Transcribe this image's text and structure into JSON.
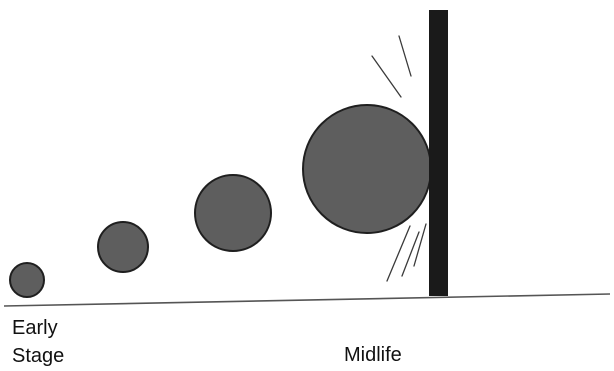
{
  "labels": {
    "early_line1": "Early",
    "early_line2": "Stage",
    "midlife": "Midlife"
  },
  "colors": {
    "ball_fill": "#5e5e5e",
    "ball_outline": "#1f1f1f",
    "wall": "#1a1a1a",
    "ground": "#555555",
    "text": "#111111",
    "background": "#ffffff"
  }
}
